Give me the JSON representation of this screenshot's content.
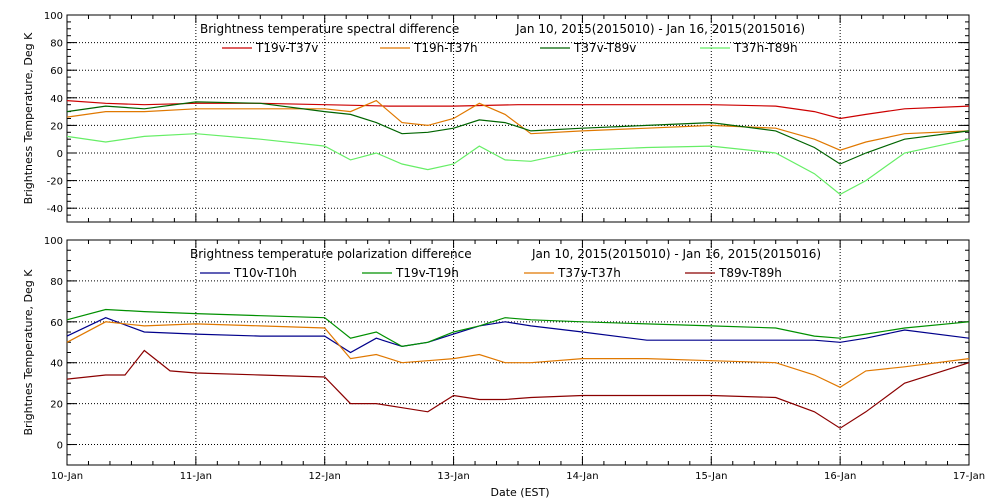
{
  "figure": {
    "xlabel": "Date (EST)"
  },
  "chart_data": [
    {
      "type": "line",
      "title_left": "Brightness temperature spectral difference",
      "title_right": "Jan 10, 2015(2015010) - Jan 16, 2015(2015016)",
      "ylabel": "Brightness Temperature, Deg K",
      "ylim": [
        -50,
        100
      ],
      "yticks": [
        -40,
        -20,
        0,
        20,
        40,
        60,
        80,
        100
      ],
      "xlim": [
        0,
        7
      ],
      "grid": true,
      "legend_placement": "top",
      "series": [
        {
          "name": "T19v-T37v",
          "color": "#cc0000",
          "x": [
            0,
            0.3,
            0.6,
            1.0,
            1.5,
            2.0,
            2.5,
            3.0,
            3.5,
            4.0,
            4.5,
            5.0,
            5.5,
            5.8,
            6.0,
            6.2,
            6.5,
            7.0
          ],
          "y": [
            38,
            36,
            35,
            36,
            36,
            35,
            34,
            34,
            35,
            35,
            35,
            35,
            34,
            30,
            25,
            28,
            32,
            34
          ]
        },
        {
          "name": "T19h-T37h",
          "color": "#e07800",
          "x": [
            0,
            0.3,
            0.6,
            1.0,
            1.5,
            2.0,
            2.2,
            2.4,
            2.6,
            2.8,
            3.0,
            3.2,
            3.4,
            3.6,
            4.0,
            4.5,
            5.0,
            5.5,
            5.8,
            6.0,
            6.2,
            6.5,
            7.0
          ],
          "y": [
            26,
            30,
            30,
            32,
            32,
            32,
            30,
            38,
            22,
            20,
            25,
            36,
            28,
            14,
            16,
            18,
            20,
            18,
            10,
            2,
            8,
            14,
            16
          ]
        },
        {
          "name": "T37v-T89v",
          "color": "#006400",
          "x": [
            0,
            0.3,
            0.6,
            1.0,
            1.5,
            2.0,
            2.2,
            2.4,
            2.6,
            2.8,
            3.0,
            3.2,
            3.4,
            3.6,
            4.0,
            4.5,
            5.0,
            5.5,
            5.8,
            6.0,
            6.2,
            6.5,
            7.0
          ],
          "y": [
            30,
            34,
            32,
            37,
            36,
            30,
            28,
            22,
            14,
            15,
            18,
            24,
            22,
            16,
            18,
            20,
            22,
            16,
            4,
            -8,
            0,
            10,
            16
          ]
        },
        {
          "name": "T37h-T89h",
          "color": "#66ee66",
          "x": [
            0,
            0.3,
            0.6,
            1.0,
            1.5,
            2.0,
            2.2,
            2.4,
            2.6,
            2.8,
            3.0,
            3.2,
            3.4,
            3.6,
            4.0,
            4.5,
            5.0,
            5.5,
            5.8,
            6.0,
            6.2,
            6.5,
            7.0
          ],
          "y": [
            12,
            8,
            12,
            14,
            10,
            5,
            -5,
            0,
            -8,
            -12,
            -8,
            5,
            -5,
            -6,
            2,
            4,
            5,
            0,
            -15,
            -30,
            -20,
            0,
            10
          ]
        }
      ]
    },
    {
      "type": "line",
      "title_left": "Brightness temperature polarization difference",
      "title_right": "Jan 10, 2015(2015010) - Jan 16, 2015(2015016)",
      "ylabel": "Brightnes Temperature, Deg K",
      "ylim": [
        -10,
        100
      ],
      "yticks": [
        0,
        20,
        40,
        60,
        80,
        100
      ],
      "xlim": [
        0,
        7
      ],
      "grid": true,
      "legend_placement": "top",
      "series": [
        {
          "name": "T10v-T10h",
          "color": "#00008b",
          "x": [
            0,
            0.3,
            0.6,
            1.0,
            1.5,
            2.0,
            2.2,
            2.4,
            2.6,
            2.8,
            3.0,
            3.2,
            3.4,
            3.6,
            4.0,
            4.5,
            5.0,
            5.5,
            5.8,
            6.0,
            6.2,
            6.5,
            7.0
          ],
          "y": [
            53,
            62,
            55,
            54,
            53,
            53,
            45,
            52,
            48,
            50,
            54,
            58,
            60,
            58,
            55,
            51,
            51,
            51,
            51,
            50,
            52,
            56,
            52
          ]
        },
        {
          "name": "T19v-T19h",
          "color": "#009000",
          "x": [
            0,
            0.3,
            0.6,
            1.0,
            1.5,
            2.0,
            2.2,
            2.4,
            2.6,
            2.8,
            3.0,
            3.2,
            3.4,
            3.6,
            4.0,
            4.5,
            5.0,
            5.5,
            5.8,
            6.0,
            6.2,
            6.5,
            7.0
          ],
          "y": [
            61,
            66,
            65,
            64,
            63,
            62,
            52,
            55,
            48,
            50,
            55,
            58,
            62,
            61,
            60,
            59,
            58,
            57,
            53,
            52,
            54,
            57,
            60
          ]
        },
        {
          "name": "T37v-T37h",
          "color": "#e07800",
          "x": [
            0,
            0.3,
            0.6,
            1.0,
            1.5,
            2.0,
            2.2,
            2.4,
            2.6,
            2.8,
            3.0,
            3.2,
            3.4,
            3.6,
            4.0,
            4.5,
            5.0,
            5.5,
            5.8,
            6.0,
            6.2,
            6.5,
            7.0
          ],
          "y": [
            50,
            60,
            58,
            59,
            58,
            57,
            42,
            44,
            40,
            41,
            42,
            44,
            40,
            40,
            42,
            42,
            41,
            40,
            34,
            28,
            36,
            38,
            42
          ]
        },
        {
          "name": "T89v-T89h",
          "color": "#8b0000",
          "x": [
            0,
            0.3,
            0.45,
            0.6,
            0.8,
            1.0,
            1.5,
            2.0,
            2.2,
            2.4,
            2.6,
            2.8,
            3.0,
            3.2,
            3.4,
            3.6,
            4.0,
            4.5,
            5.0,
            5.5,
            5.8,
            6.0,
            6.2,
            6.5,
            7.0
          ],
          "y": [
            32,
            34,
            34,
            46,
            36,
            35,
            34,
            33,
            20,
            20,
            18,
            16,
            24,
            22,
            22,
            23,
            24,
            24,
            24,
            23,
            16,
            8,
            16,
            30,
            40
          ]
        }
      ]
    }
  ],
  "x_tick_labels": [
    "10-Jan",
    "11-Jan",
    "12-Jan",
    "13-Jan",
    "14-Jan",
    "15-Jan",
    "16-Jan",
    "17-Jan"
  ]
}
